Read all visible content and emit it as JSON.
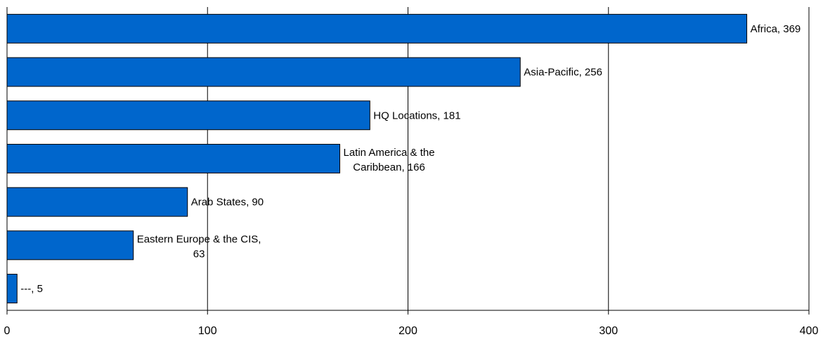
{
  "chart_data": {
    "type": "bar",
    "orientation": "horizontal",
    "categories": [
      "Africa",
      "Asia-Pacific",
      "HQ Locations",
      "Latin America & the Caribbean",
      "Arab States",
      "Eastern Europe & the CIS",
      "---"
    ],
    "values": [
      369,
      256,
      181,
      166,
      90,
      63,
      5
    ],
    "data_labels": [
      [
        "Africa, 369"
      ],
      [
        "Asia-Pacific, 256"
      ],
      [
        "HQ Locations, 181"
      ],
      [
        "Latin America & the",
        "Caribbean, 166"
      ],
      [
        "Arab States, 90"
      ],
      [
        "Eastern Europe & the CIS,",
        "63"
      ],
      [
        "---, 5"
      ]
    ],
    "x_ticks": [
      "0",
      "100",
      "200",
      "300",
      "400"
    ],
    "xlim": [
      0,
      400
    ],
    "grid": "vertical",
    "legend": "none",
    "title": "",
    "xlabel": "",
    "ylabel": "",
    "colors": {
      "bar_fill": "#0066CC",
      "bar_stroke": "#000000",
      "grid": "#000000",
      "axis": "#000000"
    }
  }
}
